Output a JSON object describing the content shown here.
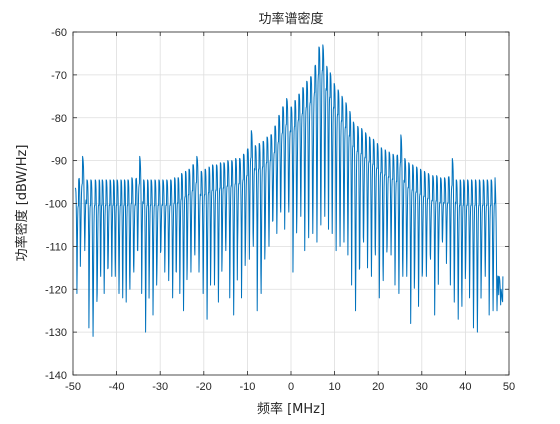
{
  "chart_data": {
    "type": "line",
    "title": "功率谱密度",
    "xlabel": "频率 [MHz]",
    "ylabel": "功率密度 [dBW/Hz]",
    "xlim": [
      -50,
      50
    ],
    "ylim": [
      -140,
      -60
    ],
    "xticks": [
      -50,
      -40,
      -30,
      -20,
      -10,
      0,
      10,
      20,
      30,
      40,
      50
    ],
    "yticks": [
      -140,
      -130,
      -120,
      -110,
      -100,
      -90,
      -80,
      -70,
      -60
    ],
    "grid": true,
    "legend": "none",
    "series": [
      {
        "color": "#0072bd",
        "x": [
          -49.5,
          -48.7,
          -47.8,
          -46.8,
          -45.9,
          -44.9,
          -44,
          -43.3,
          -42.4,
          -41.5,
          -40.7,
          -39.9,
          -39,
          -38.2,
          -37.4,
          -36.5,
          -35.6,
          -34.7,
          -33.8,
          -32.9,
          -32.1,
          -31.2,
          -30.3,
          -29.4,
          -28.5,
          -27.6,
          -26.7,
          -25.9,
          -25.1,
          -24.2,
          -23.4,
          -22.5,
          -21.6,
          -20.6,
          -19.7,
          -18.8,
          -18,
          -17.1,
          -16.2,
          -15.4,
          -14.5,
          -13.6,
          -12.7,
          -11.8,
          -10.9,
          -10,
          -9.1,
          -8.2,
          -7.3,
          -6.4,
          -5.5,
          -4.6,
          -3.7,
          -2.8,
          -1.9,
          -1,
          0,
          0.9,
          1.8,
          2.7,
          3.6,
          4.5,
          5.5,
          6.4,
          7.3,
          8.2,
          9,
          9.9,
          10.8,
          11.7,
          12.6,
          13.5,
          14.3,
          15.3,
          16.2,
          17.1,
          18,
          18.9,
          19.8,
          20.7,
          21.6,
          22.5,
          23.4,
          24.3,
          25.2,
          26.1,
          27,
          27.9,
          28.8,
          29.7,
          30.6,
          31.5,
          32.5,
          33.4,
          34.3,
          35.2,
          36.1,
          37,
          37.9,
          38.8,
          39.6,
          40.5,
          41.4,
          42.3,
          43.2,
          44.1,
          45,
          45.9,
          46.8,
          47.7,
          48.6,
          49.5
        ],
        "peaks": [
          -96.5,
          -94.5,
          -89,
          -94.5,
          -94.5,
          -94.5,
          -94.5,
          -94.5,
          -94.5,
          -94.5,
          -94.5,
          -94.5,
          -94.5,
          -94.5,
          -94.5,
          -94,
          -94.5,
          -89,
          -94.5,
          -94.5,
          -94.5,
          -94.5,
          -94.5,
          -94.5,
          -94.5,
          -94.5,
          -94,
          -94,
          -93,
          -92.5,
          -92,
          -91,
          -89,
          -92.5,
          -92,
          -91.5,
          -91,
          -91,
          -90.5,
          -90.5,
          -90,
          -90,
          -89.5,
          -89.5,
          -88.5,
          -87.5,
          -83,
          -86.5,
          -86,
          -85.5,
          -84.5,
          -84,
          -82,
          -79.5,
          -77.5,
          -75.5,
          -77.5,
          -76,
          -74.5,
          -73,
          -71.5,
          -70.5,
          -68,
          -63.5,
          -63,
          -68,
          -69.5,
          -72,
          -73.5,
          -75,
          -76.5,
          -78.5,
          -81,
          -82,
          -82.5,
          -83.5,
          -84.5,
          -85,
          -86,
          -87,
          -87.5,
          -88,
          -88.5,
          -89,
          -84,
          -89.5,
          -90.5,
          -91,
          -91.5,
          -92,
          -92.5,
          -93,
          -93.5,
          -93.5,
          -94,
          -94,
          -94,
          -89.5,
          -94.5,
          -94.5,
          -94.5,
          -94.5,
          -94.5,
          -94.5,
          -94.5,
          -94.5,
          -94.5,
          -94.5,
          -94,
          -117
        ],
        "nulls": [
          -112,
          -121,
          -110,
          -111,
          -129,
          -131,
          -121,
          -117,
          -121,
          -115,
          -117,
          -117,
          -121,
          -122,
          -123,
          -120,
          -116,
          -111,
          -121,
          -130,
          -117,
          -126,
          -116,
          -111,
          -116,
          -118,
          -122,
          -116,
          -121,
          -125,
          -115,
          -116,
          -112,
          -116,
          -121,
          -127,
          -115,
          -119,
          -123,
          -113,
          -111,
          -122,
          -126,
          -110,
          -122,
          -111,
          -113,
          -110,
          -125,
          -121,
          -110,
          -110,
          -104,
          -107,
          -102,
          -106,
          -102,
          -116,
          -103,
          -103,
          -111,
          -108,
          -107,
          -109,
          -105,
          -103,
          -106,
          -107,
          -111,
          -110,
          -109,
          -112,
          -119,
          -125,
          -115,
          -109,
          -115,
          -117,
          -112,
          -122,
          -118,
          -110,
          -112,
          -119,
          -121,
          -117,
          -117,
          -128,
          -117,
          -124,
          -116,
          -117,
          -113,
          -126,
          -112,
          -109,
          -114,
          -119,
          -123,
          -127,
          -124,
          -115,
          -122,
          -129,
          -130,
          -117,
          -117,
          -126,
          -125,
          -125,
          -120
        ]
      }
    ]
  }
}
